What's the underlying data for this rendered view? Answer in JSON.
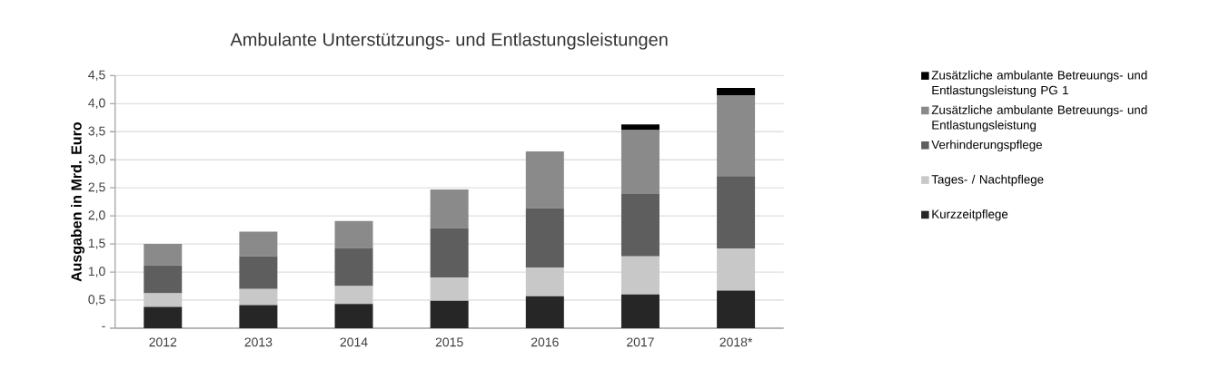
{
  "chart_data": {
    "type": "bar",
    "stacked": true,
    "title": "Ambulante Unterstützungs- und Entlastungsleistungen",
    "ylabel": "Ausgaben in Mrd. Euro",
    "categories": [
      "2012",
      "2013",
      "2014",
      "2015",
      "2016",
      "2017",
      "2018*"
    ],
    "series": [
      {
        "name": "Kurzzeitpflege",
        "color": "#262626",
        "values": [
          0.38,
          0.41,
          0.43,
          0.49,
          0.57,
          0.6,
          0.67
        ]
      },
      {
        "name": "Tages- / Nachtpflege",
        "color": "#c8c8c8",
        "values": [
          0.24,
          0.29,
          0.32,
          0.41,
          0.51,
          0.68,
          0.75
        ]
      },
      {
        "name": "Verhinderungspflege",
        "color": "#5e5e5e",
        "values": [
          0.5,
          0.58,
          0.68,
          0.88,
          1.06,
          1.11,
          1.29
        ]
      },
      {
        "name": "Zusätzliche ambulante Betreuungs- und Entlastungsleistung",
        "color": "#8a8a8a",
        "values": [
          0.38,
          0.44,
          0.48,
          0.69,
          1.01,
          1.14,
          1.44
        ]
      },
      {
        "name": "Zusätzliche ambulante Betreuungs- und Entlastungsleistung PG 1",
        "color": "#000000",
        "values": [
          null,
          null,
          null,
          null,
          null,
          0.1,
          0.13
        ]
      }
    ],
    "ylim": [
      0,
      4.5
    ],
    "yticks": [
      {
        "value": 0,
        "label": "-"
      },
      {
        "value": 0.5,
        "label": "0,5"
      },
      {
        "value": 1,
        "label": "1,0"
      },
      {
        "value": 1.5,
        "label": "1,5"
      },
      {
        "value": 2,
        "label": "2,0"
      },
      {
        "value": 2.5,
        "label": "2,5"
      },
      {
        "value": 3,
        "label": "3,0"
      },
      {
        "value": 3.5,
        "label": "3,5"
      },
      {
        "value": 4,
        "label": "4,0"
      },
      {
        "value": 4.5,
        "label": "4,5"
      }
    ],
    "grid": "y",
    "legend": "right"
  }
}
